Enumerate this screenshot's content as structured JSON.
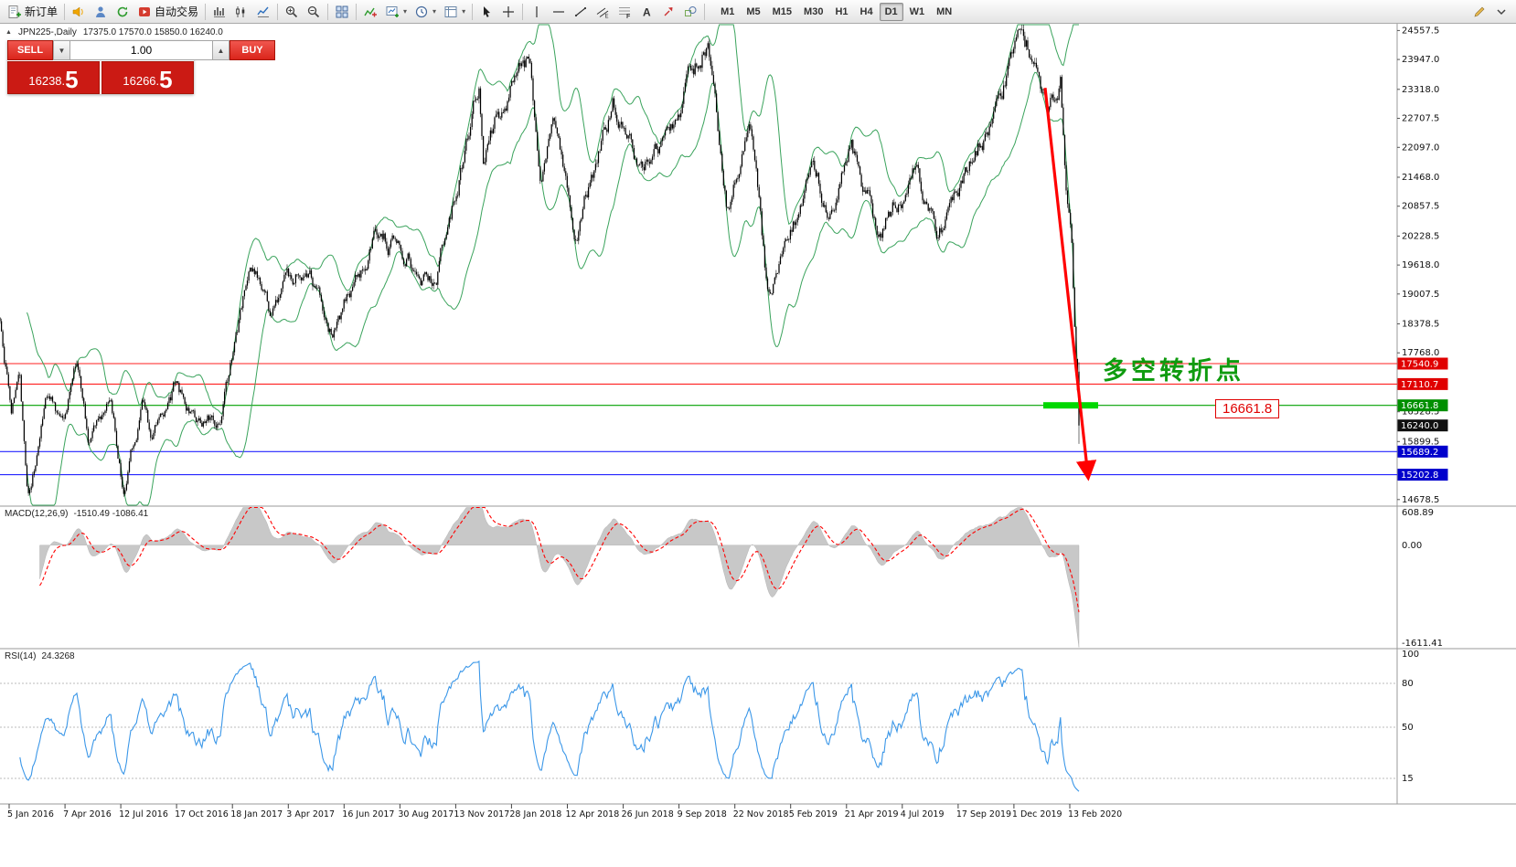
{
  "toolbar": {
    "items": [
      {
        "t": "labeled",
        "name": "new-order",
        "label": "新订单"
      },
      {
        "t": "sep"
      },
      {
        "t": "icon",
        "name": "metaeditor"
      },
      {
        "t": "icon",
        "name": "profile"
      },
      {
        "t": "icon",
        "name": "refresh"
      },
      {
        "t": "labeled",
        "name": "auto-trading",
        "label": "自动交易"
      },
      {
        "t": "sep"
      },
      {
        "t": "icon",
        "name": "bar-chart"
      },
      {
        "t": "icon",
        "name": "candlestick-chart"
      },
      {
        "t": "icon",
        "name": "line-chart"
      },
      {
        "t": "sep"
      },
      {
        "t": "icon",
        "name": "zoom-in"
      },
      {
        "t": "icon",
        "name": "zoom-out"
      },
      {
        "t": "sep"
      },
      {
        "t": "icon",
        "name": "tile-windows"
      },
      {
        "t": "sep"
      },
      {
        "t": "icon",
        "name": "indicators"
      },
      {
        "t": "dropdown",
        "name": "new-chart"
      },
      {
        "t": "dropdown",
        "name": "period"
      },
      {
        "t": "dropdown",
        "name": "templates"
      },
      {
        "t": "sep"
      },
      {
        "t": "icon",
        "name": "cursor"
      },
      {
        "t": "icon",
        "name": "crosshair"
      },
      {
        "t": "sep"
      },
      {
        "t": "icon",
        "name": "vline-tool"
      },
      {
        "t": "icon",
        "name": "hline-tool"
      },
      {
        "t": "icon",
        "name": "trendline-tool"
      },
      {
        "t": "icon",
        "name": "channel-tool"
      },
      {
        "t": "icon",
        "name": "fibonacci-tool"
      },
      {
        "t": "icon",
        "name": "text-tool"
      },
      {
        "t": "icon",
        "name": "arrows-tool"
      },
      {
        "t": "icon",
        "name": "shapes-tool"
      },
      {
        "t": "sep"
      }
    ],
    "timeframes": [
      "M1",
      "M5",
      "M15",
      "M30",
      "H1",
      "H4",
      "D1",
      "W1",
      "MN"
    ],
    "active_timeframe": "D1",
    "right_icons": [
      "pencil-edit",
      "chevron-down"
    ]
  },
  "chart": {
    "title": "JPN225-,Daily",
    "ohlc": "17375.0 17570.0 15850.0 16240.0"
  },
  "trade_panel": {
    "sell_label": "SELL",
    "buy_label": "BUY",
    "volume": "1.00",
    "sell_price": {
      "main": "16238.",
      "big": "5"
    },
    "buy_price": {
      "main": "16266.",
      "big": "5"
    }
  },
  "chart_data": {
    "type": "candlestick",
    "symbol": "JPN225-",
    "timeframe": "Daily",
    "last_ohlc": {
      "open": 17375.0,
      "high": 17570.0,
      "low": 15850.0,
      "close": 16240.0
    },
    "y_axis": {
      "min": 14540,
      "max": 24700,
      "ticks": [
        "24557.5",
        "23947.0",
        "23318.0",
        "22707.5",
        "22097.0",
        "21468.0",
        "20857.5",
        "20228.5",
        "19618.0",
        "19007.5",
        "18378.5",
        "17768.0",
        "16528.5",
        "15899.5",
        "14678.5"
      ],
      "marked": [
        {
          "value": 17540.9,
          "label": "17540.9",
          "bg": "#e00000"
        },
        {
          "value": 17110.7,
          "label": "17110.7",
          "bg": "#e00000"
        },
        {
          "value": 16661.8,
          "label": "16661.8",
          "bg": "#008f00"
        },
        {
          "value": 16240.0,
          "label": "16240.0",
          "bg": "#101010"
        },
        {
          "value": 15689.2,
          "label": "15689.2",
          "bg": "#0000cc"
        },
        {
          "value": 15202.8,
          "label": "15202.8",
          "bg": "#0000cc"
        }
      ]
    },
    "hlines": [
      {
        "value": 17540.9,
        "color": "#ff2020"
      },
      {
        "value": 17110.7,
        "color": "#ff2020"
      },
      {
        "value": 16661.8,
        "color": "#00a000"
      },
      {
        "value": 15689.2,
        "color": "#2424ff"
      },
      {
        "value": 15202.8,
        "color": "#2424ff"
      }
    ],
    "x_dates": [
      "5 Jan 2016",
      "7 Apr 2016",
      "12 Jul 2016",
      "17 Oct 2016",
      "18 Jan 2017",
      "3 Apr 2017",
      "16 Jun 2017",
      "30 Aug 2017",
      "13 Nov 2017",
      "28 Jan 2018",
      "12 Apr 2018",
      "26 Jun 2018",
      "9 Sep 2018",
      "22 Nov 2018",
      "5 Feb 2019",
      "21 Apr 2019",
      "4 Jul 2019",
      "17 Sep 2019",
      "1 Dec 2019",
      "13 Feb 2020"
    ],
    "anchors": [
      [
        0,
        18400
      ],
      [
        0.011,
        16600
      ],
      [
        0.018,
        17800
      ],
      [
        0.026,
        14950
      ],
      [
        0.045,
        17000
      ],
      [
        0.058,
        16300
      ],
      [
        0.072,
        17600
      ],
      [
        0.082,
        16000
      ],
      [
        0.103,
        16900
      ],
      [
        0.114,
        14900
      ],
      [
        0.132,
        16800
      ],
      [
        0.14,
        16050
      ],
      [
        0.161,
        17050
      ],
      [
        0.176,
        16400
      ],
      [
        0.205,
        16250
      ],
      [
        0.232,
        19450
      ],
      [
        0.241,
        19500
      ],
      [
        0.25,
        18850
      ],
      [
        0.286,
        19600
      ],
      [
        0.309,
        18300
      ],
      [
        0.351,
        20300
      ],
      [
        0.404,
        19250
      ],
      [
        0.444,
        23380
      ],
      [
        0.448,
        22030
      ],
      [
        0.492,
        24130
      ],
      [
        0.501,
        21080
      ],
      [
        0.514,
        22400
      ],
      [
        0.532,
        20350
      ],
      [
        0.568,
        23050
      ],
      [
        0.597,
        21550
      ],
      [
        0.656,
        24270
      ],
      [
        0.673,
        20970
      ],
      [
        0.696,
        22500
      ],
      [
        0.711,
        18950
      ],
      [
        0.754,
        21800
      ],
      [
        0.768,
        20900
      ],
      [
        0.789,
        22300
      ],
      [
        0.814,
        20300
      ],
      [
        0.849,
        21800
      ],
      [
        0.869,
        20150
      ],
      [
        0.942,
        24050
      ],
      [
        0.962,
        24115
      ],
      [
        0.971,
        22950
      ],
      [
        0.983,
        23480
      ],
      [
        0.989,
        21100
      ],
      [
        0.993,
        20600
      ],
      [
        0.995,
        19100
      ],
      [
        0.999,
        16700
      ],
      [
        1,
        16240
      ]
    ],
    "annotations": {
      "turning_point_text": "多空转折点",
      "price_label": "16661.8",
      "support_zone_value": 16661.8,
      "trend_arrow": {
        "from_price": 23350,
        "to_price": 15160
      }
    },
    "indicators": {
      "macd": {
        "label": "MACD(12,26,9)",
        "values_text": "-1510.49 -1086.41",
        "axis": [
          "608.89",
          "0.00",
          "-1611.41"
        ]
      },
      "rsi": {
        "label": "RSI(14)",
        "value_text": "24.3268",
        "axis": [
          "100",
          "80",
          "50",
          "15"
        ],
        "levels": [
          80,
          50,
          15
        ]
      }
    },
    "colors": {
      "bands": "#3aa35c",
      "candles": "#000000",
      "arrow": "#ff0000",
      "zone": "#00d800",
      "macd_hist": "#c8c8c8",
      "macd_signal": "#ff0000",
      "rsi_line": "#3b97e8",
      "separator": "#9a9a9a"
    }
  }
}
